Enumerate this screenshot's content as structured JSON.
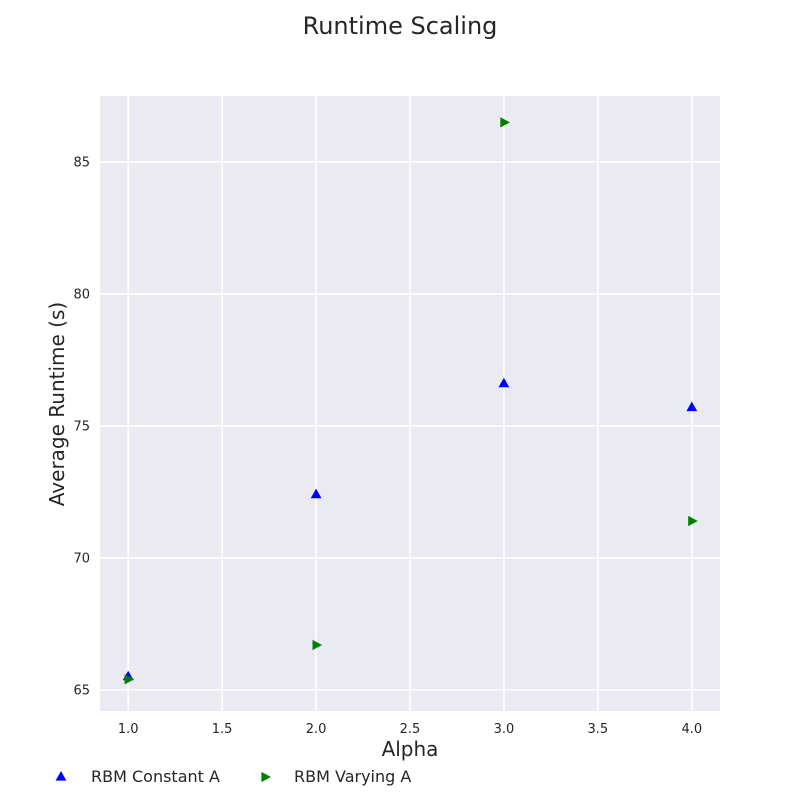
{
  "chart_data": {
    "type": "scatter",
    "title": "Runtime Scaling",
    "xlabel": "Alpha",
    "ylabel": "Average Runtime (s)",
    "xlim": [
      0.85,
      4.15
    ],
    "ylim": [
      64.2,
      87.5
    ],
    "xticks": [
      1.0,
      1.5,
      2.0,
      2.5,
      3.0,
      3.5,
      4.0
    ],
    "xtick_labels": [
      "1.0",
      "1.5",
      "2.0",
      "2.5",
      "3.0",
      "3.5",
      "4.0"
    ],
    "yticks": [
      65,
      70,
      75,
      80,
      85
    ],
    "ytick_labels": [
      "65",
      "70",
      "75",
      "80",
      "85"
    ],
    "grid": true,
    "legend_position": "bottom",
    "series": [
      {
        "name": "RBM Constant A",
        "marker": "triangle-up",
        "color": "#0000ff",
        "x": [
          1.0,
          2.0,
          3.0,
          4.0
        ],
        "y": [
          65.5,
          72.4,
          76.6,
          75.7
        ]
      },
      {
        "name": "RBM Varying A",
        "marker": "triangle-right",
        "color": "#008000",
        "x": [
          1.0,
          2.0,
          3.0,
          4.0
        ],
        "y": [
          65.4,
          66.7,
          86.5,
          71.4
        ]
      }
    ]
  }
}
